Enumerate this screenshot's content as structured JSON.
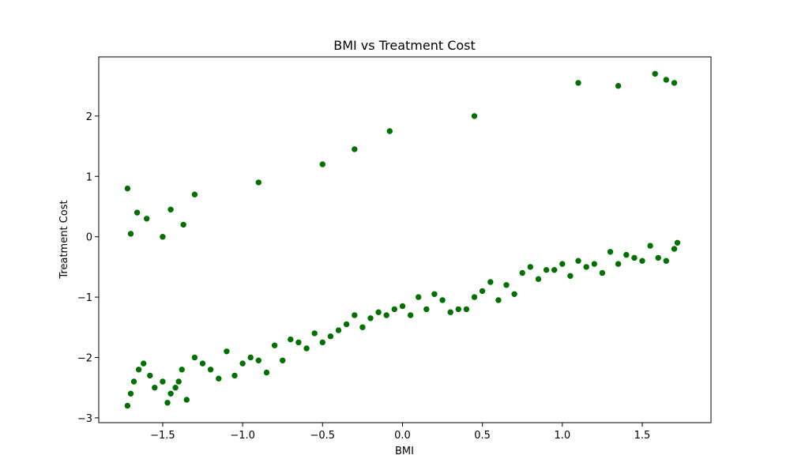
{
  "chart_data": {
    "type": "scatter",
    "title": "BMI vs Treatment Cost",
    "xlabel": "BMI",
    "ylabel": "Treatment Cost",
    "xlim": [
      -1.9,
      1.93
    ],
    "ylim": [
      -3.08,
      2.98
    ],
    "xticks": [
      -1.5,
      -1.0,
      -0.5,
      0.0,
      0.5,
      1.0,
      1.5
    ],
    "xtick_labels": [
      "−1.5",
      "−1.0",
      "−0.5",
      "0.0",
      "0.5",
      "1.0",
      "1.5"
    ],
    "yticks": [
      -3,
      -2,
      -1,
      0,
      1,
      2
    ],
    "ytick_labels": [
      "−3",
      "−2",
      "−1",
      "0",
      "1",
      "2"
    ],
    "grid": false,
    "marker_color": "#007000",
    "marker_edge_color": "#ffffff",
    "series": [
      {
        "x": [
          -1.72,
          -1.7,
          -1.68,
          -1.65,
          -1.62,
          -1.58,
          -1.55,
          -1.5,
          -1.47,
          -1.45,
          -1.42,
          -1.4,
          -1.38,
          -1.35,
          -1.3,
          -1.25,
          -1.2,
          -1.15,
          -1.1,
          -1.05,
          -1.0,
          -0.95,
          -0.9,
          -0.85,
          -0.8,
          -0.75,
          -0.7,
          -0.65,
          -0.6,
          -0.55,
          -0.5,
          -0.45,
          -0.4,
          -0.35,
          -0.3,
          -0.25,
          -0.2,
          -0.15,
          -0.1,
          -0.05,
          0.0,
          0.05,
          0.1,
          0.15,
          0.2,
          0.25,
          0.3,
          0.35,
          0.4,
          0.45,
          0.5,
          0.55,
          0.6,
          0.65,
          0.7,
          0.75,
          0.8,
          0.85,
          0.9,
          0.95,
          1.0,
          1.05,
          1.1,
          1.15,
          1.2,
          1.25,
          1.3,
          1.35,
          1.4,
          1.45,
          1.5,
          1.55,
          1.6,
          1.65,
          1.7,
          1.72,
          -1.7,
          -1.6,
          -1.5,
          -1.45,
          -1.37,
          -1.72,
          -1.66,
          1.58,
          1.65,
          1.7,
          1.1,
          1.35,
          0.45,
          -0.08,
          -0.3,
          -0.5,
          -0.9,
          -1.3
        ],
        "y": [
          -2.8,
          -2.6,
          -2.4,
          -2.2,
          -2.1,
          -2.3,
          -2.5,
          -2.4,
          -2.75,
          -2.6,
          -2.5,
          -2.4,
          -2.2,
          -2.7,
          -2.0,
          -2.1,
          -2.2,
          -2.35,
          -1.9,
          -2.3,
          -2.1,
          -2.0,
          -2.05,
          -2.25,
          -1.8,
          -2.05,
          -1.7,
          -1.75,
          -1.85,
          -1.6,
          -1.75,
          -1.65,
          -1.55,
          -1.45,
          -1.3,
          -1.5,
          -1.35,
          -1.25,
          -1.3,
          -1.2,
          -1.15,
          -1.3,
          -1.0,
          -1.2,
          -0.95,
          -1.05,
          -1.25,
          -1.2,
          -1.2,
          -1.0,
          -0.9,
          -0.75,
          -1.05,
          -0.8,
          -0.95,
          -0.6,
          -0.5,
          -0.7,
          -0.55,
          -0.55,
          -0.45,
          -0.65,
          -0.4,
          -0.5,
          -0.45,
          -0.6,
          -0.25,
          -0.45,
          -0.3,
          -0.35,
          -0.4,
          -0.15,
          -0.35,
          -0.4,
          -0.2,
          -0.1,
          0.05,
          0.3,
          0.0,
          0.45,
          0.2,
          0.8,
          0.4,
          2.7,
          2.6,
          2.55,
          2.55,
          2.5,
          2.0,
          1.75,
          1.45,
          1.2,
          0.9,
          0.7
        ]
      }
    ]
  }
}
